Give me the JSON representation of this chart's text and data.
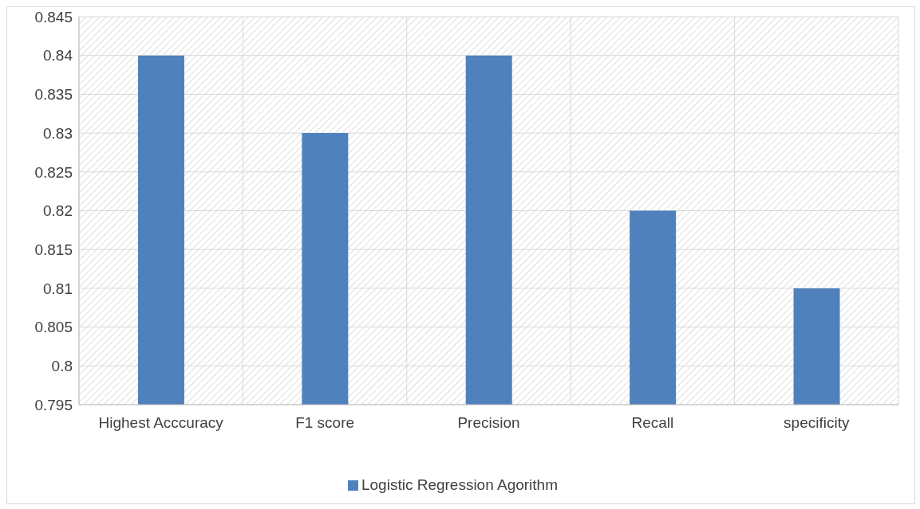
{
  "chart_data": {
    "type": "bar",
    "categories": [
      "Highest Acccuracy",
      "F1 score",
      "Precision",
      "Recall",
      "specificity"
    ],
    "series": [
      {
        "name": "Logistic Regression Agorithm",
        "color": "#4f81bd",
        "values": [
          0.84,
          0.83,
          0.84,
          0.82,
          0.81
        ]
      }
    ],
    "ylim": [
      0.795,
      0.845
    ],
    "yticks": [
      0.795,
      0.8,
      0.805,
      0.81,
      0.815,
      0.82,
      0.825,
      0.83,
      0.835,
      0.84,
      0.845
    ],
    "grid": true,
    "legend": "bottom"
  }
}
